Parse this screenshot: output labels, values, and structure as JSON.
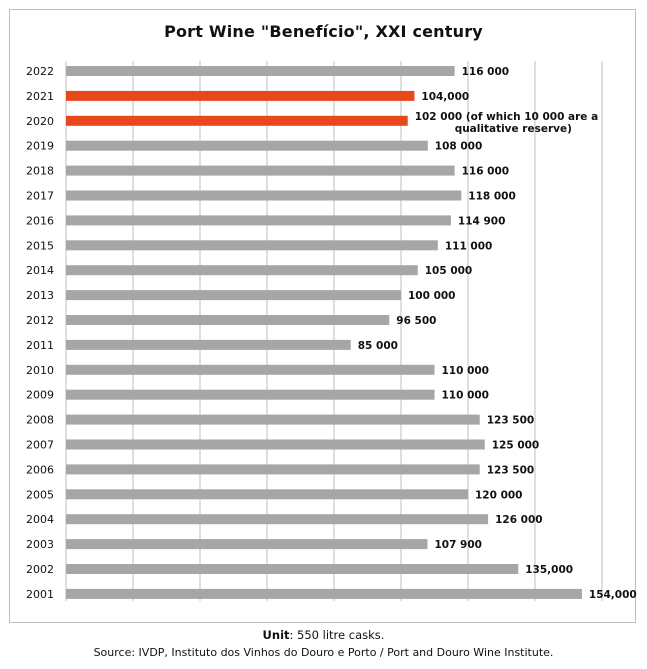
{
  "chart_data": {
    "type": "bar",
    "orientation": "horizontal",
    "title": "Port Wine \"Benefício\",  XXI century",
    "categories": [
      "2022",
      "2021",
      "2020",
      "2019",
      "2018",
      "2017",
      "2016",
      "2015",
      "2014",
      "2013",
      "2012",
      "2011",
      "2010",
      "2009",
      "2008",
      "2007",
      "2006",
      "2005",
      "2004",
      "2003",
      "2002",
      "2001"
    ],
    "values": [
      116000,
      104000,
      102000,
      108000,
      116000,
      118000,
      114900,
      111000,
      105000,
      100000,
      96500,
      85000,
      110000,
      110000,
      123500,
      125000,
      123500,
      120000,
      126000,
      107900,
      135000,
      154000
    ],
    "data_labels": [
      [
        "116 000"
      ],
      [
        "104,000"
      ],
      [
        "102 000 (of which 10 000  are a",
        "qualitative reserve)"
      ],
      [
        "108 000"
      ],
      [
        "116 000"
      ],
      [
        "118 000"
      ],
      [
        "114 900"
      ],
      [
        "111 000"
      ],
      [
        "105 000"
      ],
      [
        "100 000"
      ],
      [
        "96 500"
      ],
      [
        "85 000"
      ],
      [
        "110 000"
      ],
      [
        "110 000"
      ],
      [
        "123 500"
      ],
      [
        "125 000"
      ],
      [
        "123 500"
      ],
      [
        "120 000"
      ],
      [
        "126 000"
      ],
      [
        "107 900"
      ],
      [
        "135,000"
      ],
      [
        "154,000"
      ]
    ],
    "highlighted": [
      "2021",
      "2020"
    ],
    "colors": {
      "default": "#a6a6a6",
      "highlight": "#e8481c",
      "grid": "#bfbfbf"
    },
    "xlim": [
      0,
      160000
    ],
    "grid": true,
    "gridlines_x": [
      0,
      20000,
      40000,
      60000,
      80000,
      100000,
      120000,
      140000,
      160000
    ],
    "unit": "550 litre casks."
  },
  "footer": {
    "unit_label": "Unit",
    "unit_text": ": 550 litre casks.",
    "source": "Source: IVDP, Instituto dos Vinhos do Douro e Porto / Port and Douro Wine Institute."
  }
}
